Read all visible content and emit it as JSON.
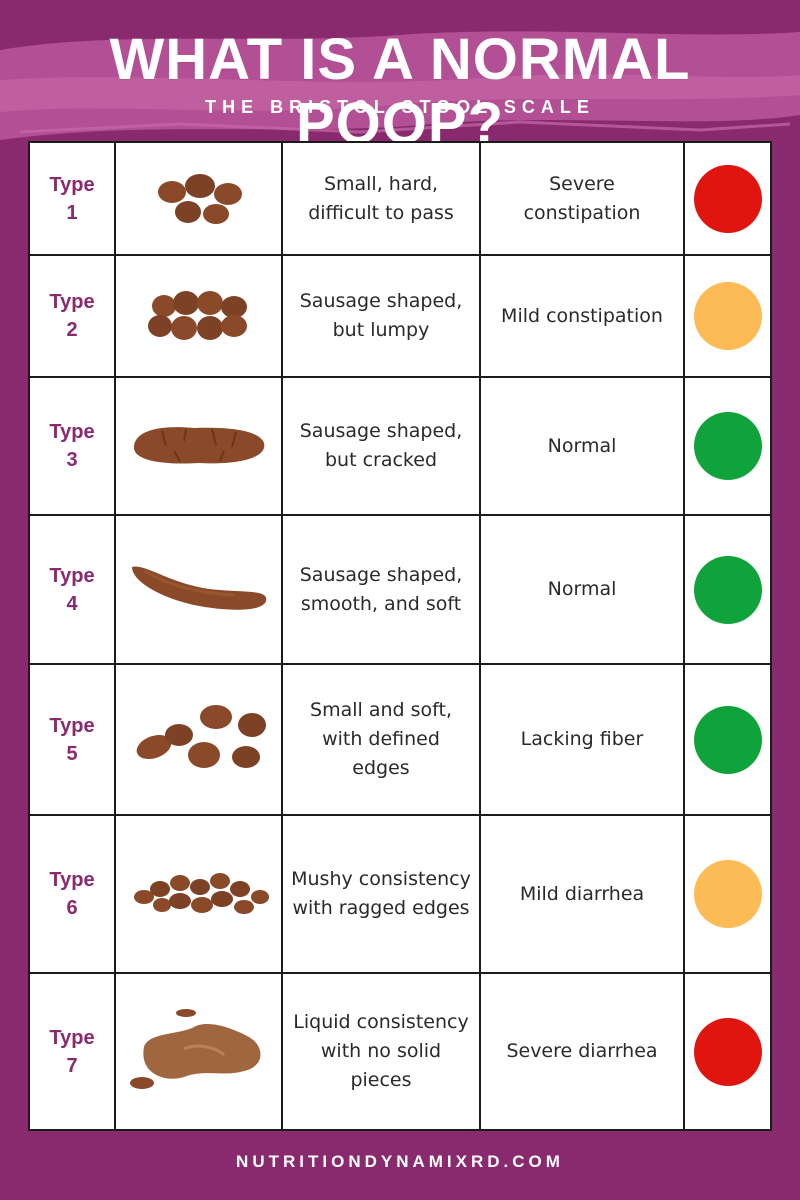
{
  "header": {
    "title": "WHAT IS A NORMAL POOP?",
    "subtitle": "THE BRISTOL STOOL SCALE"
  },
  "colors": {
    "background": "#8a2a6e",
    "brush": "#b34f95",
    "stool": "#8a4a2a",
    "red": "#e0150f",
    "orange": "#fdbb55",
    "green": "#10a33b"
  },
  "rows": [
    {
      "type": "Type\n1",
      "description": "Small, hard, difficult to pass",
      "meaning": "Severe constipation",
      "status": "red",
      "icon": "separate-hard-lumps-icon"
    },
    {
      "type": "Type\n2",
      "description": "Sausage shaped, but lumpy",
      "meaning": "Mild constipation",
      "status": "orange",
      "icon": "lumpy-sausage-icon"
    },
    {
      "type": "Type\n3",
      "description": "Sausage shaped, but cracked",
      "meaning": "Normal",
      "status": "green",
      "icon": "cracked-sausage-icon"
    },
    {
      "type": "Type\n4",
      "description": "Sausage shaped, smooth, and soft",
      "meaning": "Normal",
      "status": "green",
      "icon": "smooth-sausage-icon"
    },
    {
      "type": "Type\n5",
      "description": "Small and soft, with defined edges",
      "meaning": "Lacking fiber",
      "status": "green",
      "icon": "soft-blobs-icon"
    },
    {
      "type": "Type\n6",
      "description": "Mushy consistency with ragged edges",
      "meaning": "Mild diarrhea",
      "status": "orange",
      "icon": "mushy-pieces-icon"
    },
    {
      "type": "Type\n7",
      "description": "Liquid consistency with no solid pieces",
      "meaning": "Severe diarrhea",
      "status": "red",
      "icon": "liquid-puddle-icon"
    }
  ],
  "footer": {
    "website": "NUTRITIONDYNAMIXRD.COM"
  }
}
